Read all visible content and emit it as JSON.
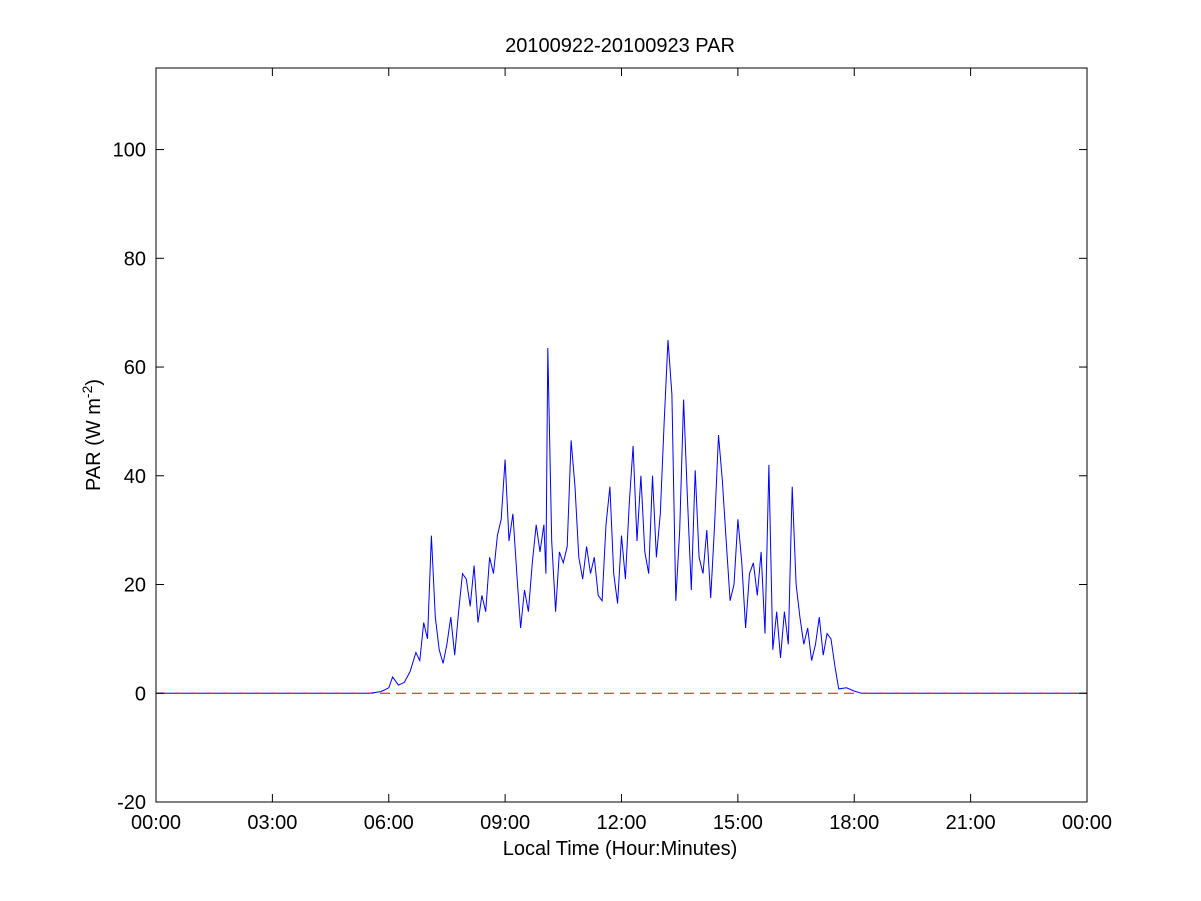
{
  "chart_data": {
    "type": "line",
    "title": "20100922-20100923 PAR",
    "xlabel": "Local Time (Hour:Minutes)",
    "ylabel": {
      "text": "PAR (W m",
      "superscript": "-2",
      "suffix": ")"
    },
    "xlim": [
      0,
      24
    ],
    "ylim": [
      -20,
      115
    ],
    "x_ticks": [
      {
        "value": 0,
        "label": "00:00"
      },
      {
        "value": 3,
        "label": "03:00"
      },
      {
        "value": 6,
        "label": "06:00"
      },
      {
        "value": 9,
        "label": "09:00"
      },
      {
        "value": 12,
        "label": "12:00"
      },
      {
        "value": 15,
        "label": "15:00"
      },
      {
        "value": 18,
        "label": "18:00"
      },
      {
        "value": 21,
        "label": "21:00"
      },
      {
        "value": 24,
        "label": "00:00"
      }
    ],
    "y_ticks": [
      {
        "value": -20,
        "label": "-20"
      },
      {
        "value": 0,
        "label": "0"
      },
      {
        "value": 20,
        "label": "20"
      },
      {
        "value": 40,
        "label": "40"
      },
      {
        "value": 60,
        "label": "60"
      },
      {
        "value": 80,
        "label": "80"
      },
      {
        "value": 100,
        "label": "100"
      }
    ],
    "grid": false,
    "legend": "none",
    "series": [
      {
        "color": "#0000ff",
        "style": "solid",
        "x": [
          0,
          5.5,
          5.8,
          6.0,
          6.1,
          6.25,
          6.4,
          6.55,
          6.7,
          6.8,
          6.9,
          7.0,
          7.1,
          7.2,
          7.3,
          7.4,
          7.5,
          7.6,
          7.7,
          7.8,
          7.9,
          8.0,
          8.1,
          8.2,
          8.3,
          8.4,
          8.5,
          8.6,
          8.7,
          8.8,
          8.9,
          9.0,
          9.1,
          9.2,
          9.3,
          9.4,
          9.5,
          9.6,
          9.7,
          9.8,
          9.9,
          10.0,
          10.05,
          10.1,
          10.2,
          10.3,
          10.4,
          10.5,
          10.6,
          10.7,
          10.8,
          10.9,
          11.0,
          11.1,
          11.2,
          11.3,
          11.4,
          11.5,
          11.6,
          11.7,
          11.8,
          11.9,
          12.0,
          12.1,
          12.2,
          12.3,
          12.4,
          12.5,
          12.6,
          12.7,
          12.8,
          12.9,
          13.0,
          13.1,
          13.2,
          13.3,
          13.4,
          13.5,
          13.6,
          13.7,
          13.8,
          13.9,
          14.0,
          14.1,
          14.2,
          14.3,
          14.4,
          14.5,
          14.6,
          14.7,
          14.8,
          14.9,
          15.0,
          15.1,
          15.2,
          15.3,
          15.4,
          15.5,
          15.6,
          15.7,
          15.8,
          15.9,
          16.0,
          16.1,
          16.2,
          16.3,
          16.4,
          16.5,
          16.6,
          16.7,
          16.8,
          16.9,
          17.0,
          17.1,
          17.2,
          17.3,
          17.4,
          17.5,
          17.6,
          17.8,
          18.0,
          18.2,
          24
        ],
        "y": [
          0,
          0,
          0.3,
          1.0,
          3.0,
          1.5,
          2.0,
          4.0,
          7.5,
          6.0,
          13.0,
          10.0,
          29.0,
          14.0,
          8.0,
          5.5,
          9.0,
          14.0,
          7.0,
          15.0,
          22.0,
          21.0,
          16.0,
          23.5,
          13.0,
          18.0,
          15.0,
          25.0,
          22.0,
          29.0,
          32.0,
          43.0,
          28.0,
          33.0,
          22.0,
          12.0,
          19.0,
          15.0,
          24.0,
          31.0,
          26.0,
          31.0,
          22.0,
          63.5,
          28.0,
          15.0,
          26.0,
          24.0,
          27.0,
          46.5,
          38.0,
          25.0,
          21.0,
          27.0,
          22.0,
          25.0,
          18.0,
          17.0,
          31.0,
          38.0,
          22.0,
          16.5,
          29.0,
          21.0,
          35.0,
          45.5,
          28.0,
          40.0,
          26.0,
          22.0,
          40.0,
          25.0,
          33.0,
          50.0,
          65.0,
          55.0,
          17.0,
          30.0,
          54.0,
          36.0,
          19.0,
          41.0,
          25.0,
          22.0,
          30.0,
          17.5,
          31.0,
          47.5,
          39.0,
          28.0,
          17.0,
          20.0,
          32.0,
          24.0,
          12.0,
          22.0,
          24.0,
          18.0,
          26.0,
          11.0,
          42.0,
          8.0,
          15.0,
          6.5,
          15.0,
          9.0,
          38.0,
          20.0,
          14.0,
          9.0,
          12.0,
          6.0,
          9.0,
          14.0,
          7.0,
          11.0,
          10.0,
          5.0,
          0.8,
          1.0,
          0.4,
          0,
          0
        ]
      },
      {
        "color": "#ff0000",
        "style": "dashed",
        "x": [
          0,
          24
        ],
        "y": [
          0,
          0
        ]
      }
    ]
  }
}
